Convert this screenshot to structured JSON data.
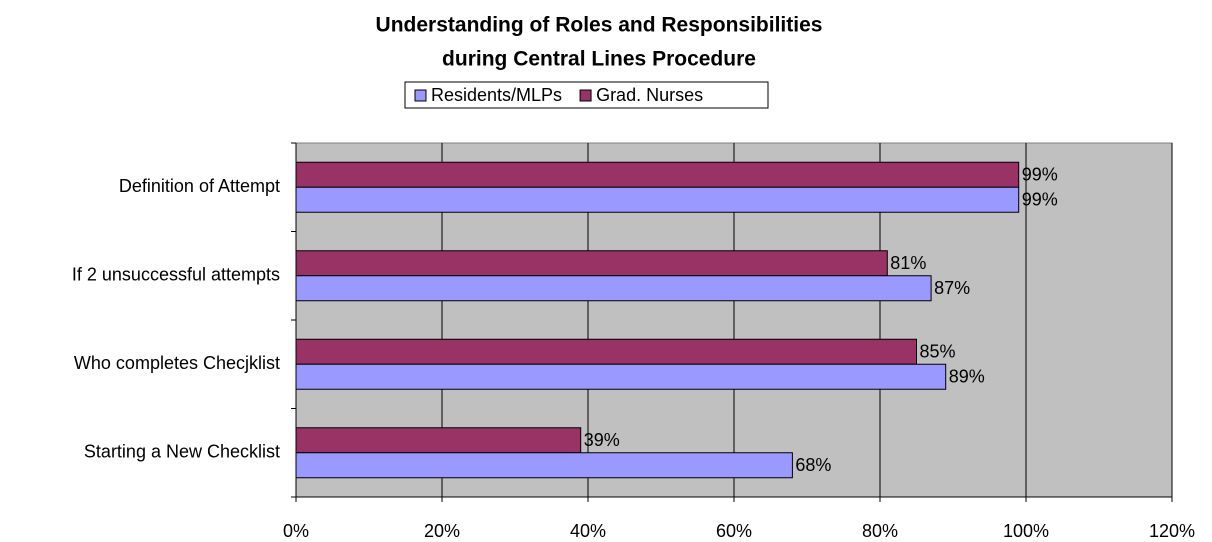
{
  "chart_data": {
    "type": "hbar",
    "title": [
      "Understanding of Roles and Responsibilities",
      "during Central Lines Procedure"
    ],
    "categories": [
      "Definition of Attempt",
      "If 2 unsuccessful attempts",
      "Who completes Checjklist",
      "Starting a New Checklist"
    ],
    "series": [
      {
        "name": "Residents/MLPs",
        "color": "#9999ff",
        "values": [
          99,
          87,
          89,
          68
        ],
        "value_labels": [
          "99%",
          "87%",
          "89%",
          "68%"
        ]
      },
      {
        "name": "Grad. Nurses",
        "color": "#993366",
        "values": [
          99,
          81,
          85,
          39
        ],
        "value_labels": [
          "99%",
          "81%",
          "85%",
          "39%"
        ]
      }
    ],
    "xlim": [
      0,
      120
    ],
    "xticks": [
      {
        "value": 0,
        "label": "0%"
      },
      {
        "value": 20,
        "label": "20%"
      },
      {
        "value": 40,
        "label": "40%"
      },
      {
        "value": 60,
        "label": "60%"
      },
      {
        "value": 80,
        "label": "80%"
      },
      {
        "value": 100,
        "label": "100%"
      },
      {
        "value": 120,
        "label": "120%"
      }
    ],
    "grid": true,
    "legend": "top"
  }
}
